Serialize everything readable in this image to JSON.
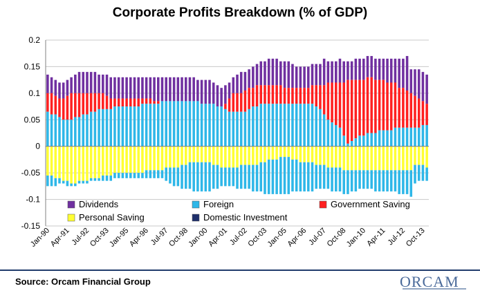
{
  "chart_data": {
    "type": "bar",
    "stacked": true,
    "title": "Corporate Profits Breakdown (% of GDP)",
    "xlabel": "",
    "ylabel": "",
    "ylim": [
      -0.15,
      0.2
    ],
    "yticks": [
      -0.15,
      -0.1,
      -0.05,
      0,
      0.05,
      0.1,
      0.15,
      0.2
    ],
    "ytick_labels": [
      "-0.15",
      "-0.1",
      "-0.05",
      "0",
      "0.05",
      "0.1",
      "0.15",
      "0.2"
    ],
    "x_tick_labels": [
      "Jan-90",
      "Apr-91",
      "Jul-92",
      "Oct-93",
      "Jan-95",
      "Apr-96",
      "Jul-97",
      "Oct-98",
      "Jan-00",
      "Apr-01",
      "Jul-02",
      "Oct-03",
      "Jan-05",
      "Apr-06",
      "Jul-07",
      "Oct-08",
      "Jan-10",
      "Apr-11",
      "Jul-12",
      "Oct-13"
    ],
    "grid": true,
    "legend_position": "bottom",
    "series": [
      {
        "name": "Dividends",
        "color": "#7030a0"
      },
      {
        "name": "Foreign",
        "color": "#2eb7e8"
      },
      {
        "name": "Government Saving",
        "color": "#ff2020"
      },
      {
        "name": "Personal Saving",
        "color": "#ffff33"
      },
      {
        "name": "Domestic Investment",
        "color": "#1f2f6b"
      }
    ],
    "quarterly_values": {
      "x": [
        "1990-Q1",
        "1990-Q2",
        "1990-Q3",
        "1990-Q4",
        "1991-Q1",
        "1991-Q2",
        "1991-Q3",
        "1991-Q4",
        "1992-Q1",
        "1992-Q2",
        "1992-Q3",
        "1992-Q4",
        "1993-Q1",
        "1993-Q2",
        "1993-Q3",
        "1993-Q4",
        "1994-Q1",
        "1994-Q2",
        "1994-Q3",
        "1994-Q4",
        "1995-Q1",
        "1995-Q2",
        "1995-Q3",
        "1995-Q4",
        "1996-Q1",
        "1996-Q2",
        "1996-Q3",
        "1996-Q4",
        "1997-Q1",
        "1997-Q2",
        "1997-Q3",
        "1997-Q4",
        "1998-Q1",
        "1998-Q2",
        "1998-Q3",
        "1998-Q4",
        "1999-Q1",
        "1999-Q2",
        "1999-Q3",
        "1999-Q4",
        "2000-Q1",
        "2000-Q2",
        "2000-Q3",
        "2000-Q4",
        "2001-Q1",
        "2001-Q2",
        "2001-Q3",
        "2001-Q4",
        "2002-Q1",
        "2002-Q2",
        "2002-Q3",
        "2002-Q4",
        "2003-Q1",
        "2003-Q2",
        "2003-Q3",
        "2003-Q4",
        "2004-Q1",
        "2004-Q2",
        "2004-Q3",
        "2004-Q4",
        "2005-Q1",
        "2005-Q2",
        "2005-Q3",
        "2005-Q4",
        "2006-Q1",
        "2006-Q2",
        "2006-Q3",
        "2006-Q4",
        "2007-Q1",
        "2007-Q2",
        "2007-Q3",
        "2007-Q4",
        "2008-Q1",
        "2008-Q2",
        "2008-Q3",
        "2008-Q4",
        "2009-Q1",
        "2009-Q2",
        "2009-Q3",
        "2009-Q4",
        "2010-Q1",
        "2010-Q2",
        "2010-Q3",
        "2010-Q4",
        "2011-Q1",
        "2011-Q2",
        "2011-Q3",
        "2011-Q4",
        "2012-Q1",
        "2012-Q2",
        "2012-Q3",
        "2012-Q4",
        "2013-Q1",
        "2013-Q2",
        "2013-Q3",
        "2013-Q4",
        "2014-Q1"
      ],
      "positive_total": [
        0.135,
        0.13,
        0.125,
        0.12,
        0.12,
        0.125,
        0.13,
        0.135,
        0.14,
        0.14,
        0.14,
        0.14,
        0.14,
        0.135,
        0.135,
        0.135,
        0.13,
        0.13,
        0.13,
        0.13,
        0.13,
        0.13,
        0.13,
        0.13,
        0.13,
        0.13,
        0.13,
        0.13,
        0.13,
        0.13,
        0.13,
        0.13,
        0.13,
        0.13,
        0.13,
        0.13,
        0.13,
        0.13,
        0.125,
        0.125,
        0.125,
        0.125,
        0.12,
        0.115,
        0.11,
        0.115,
        0.12,
        0.13,
        0.135,
        0.14,
        0.14,
        0.145,
        0.15,
        0.155,
        0.16,
        0.16,
        0.165,
        0.165,
        0.165,
        0.16,
        0.16,
        0.16,
        0.155,
        0.15,
        0.15,
        0.15,
        0.15,
        0.155,
        0.155,
        0.155,
        0.165,
        0.16,
        0.16,
        0.16,
        0.165,
        0.16,
        0.16,
        0.16,
        0.165,
        0.165,
        0.165,
        0.17,
        0.17,
        0.165,
        0.165,
        0.165,
        0.165,
        0.165,
        0.165,
        0.165,
        0.165,
        0.17,
        0.145,
        0.145,
        0.145,
        0.14,
        0.135
      ],
      "red_top": [
        0.1,
        0.1,
        0.095,
        0.09,
        0.09,
        0.095,
        0.1,
        0.1,
        0.1,
        0.1,
        0.1,
        0.1,
        0.1,
        0.1,
        0.1,
        0.095,
        0.09,
        0.09,
        0.09,
        0.09,
        0.09,
        0.09,
        0.09,
        0.09,
        0.09,
        0.09,
        0.09,
        0.085,
        0.085,
        0.085,
        0.085,
        0.085,
        0.085,
        0.085,
        0.085,
        0.085,
        0.085,
        0.085,
        0.085,
        0.08,
        0.08,
        0.08,
        0.08,
        0.075,
        0.075,
        0.08,
        0.09,
        0.1,
        0.1,
        0.1,
        0.105,
        0.11,
        0.11,
        0.115,
        0.115,
        0.115,
        0.115,
        0.115,
        0.115,
        0.115,
        0.11,
        0.11,
        0.11,
        0.11,
        0.11,
        0.11,
        0.11,
        0.115,
        0.115,
        0.115,
        0.115,
        0.12,
        0.12,
        0.12,
        0.12,
        0.12,
        0.125,
        0.125,
        0.125,
        0.125,
        0.125,
        0.13,
        0.13,
        0.125,
        0.125,
        0.125,
        0.12,
        0.12,
        0.12,
        0.11,
        0.11,
        0.105,
        0.1,
        0.095,
        0.09,
        0.085,
        0.08
      ],
      "foreign_top": [
        0.065,
        0.06,
        0.06,
        0.055,
        0.05,
        0.05,
        0.05,
        0.055,
        0.055,
        0.06,
        0.06,
        0.065,
        0.065,
        0.07,
        0.07,
        0.07,
        0.07,
        0.075,
        0.075,
        0.075,
        0.075,
        0.075,
        0.075,
        0.075,
        0.08,
        0.08,
        0.08,
        0.08,
        0.08,
        0.085,
        0.085,
        0.085,
        0.085,
        0.085,
        0.085,
        0.085,
        0.085,
        0.085,
        0.085,
        0.08,
        0.08,
        0.08,
        0.08,
        0.075,
        0.075,
        0.07,
        0.065,
        0.065,
        0.065,
        0.065,
        0.065,
        0.07,
        0.075,
        0.075,
        0.08,
        0.08,
        0.08,
        0.08,
        0.08,
        0.08,
        0.08,
        0.08,
        0.08,
        0.08,
        0.08,
        0.08,
        0.08,
        0.08,
        0.075,
        0.07,
        0.06,
        0.05,
        0.045,
        0.04,
        0.035,
        0.02,
        0.005,
        0.01,
        0.015,
        0.02,
        0.02,
        0.025,
        0.025,
        0.025,
        0.03,
        0.03,
        0.03,
        0.03,
        0.035,
        0.035,
        0.035,
        0.035,
        0.035,
        0.035,
        0.035,
        0.04,
        0.04
      ],
      "yellow_bottom": [
        -0.055,
        -0.055,
        -0.06,
        -0.06,
        -0.065,
        -0.065,
        -0.07,
        -0.07,
        -0.065,
        -0.065,
        -0.065,
        -0.06,
        -0.06,
        -0.06,
        -0.055,
        -0.055,
        -0.055,
        -0.05,
        -0.05,
        -0.05,
        -0.05,
        -0.05,
        -0.05,
        -0.05,
        -0.05,
        -0.045,
        -0.045,
        -0.045,
        -0.045,
        -0.045,
        -0.04,
        -0.04,
        -0.04,
        -0.04,
        -0.035,
        -0.035,
        -0.03,
        -0.03,
        -0.03,
        -0.03,
        -0.03,
        -0.03,
        -0.035,
        -0.035,
        -0.04,
        -0.04,
        -0.04,
        -0.04,
        -0.04,
        -0.035,
        -0.035,
        -0.035,
        -0.035,
        -0.035,
        -0.03,
        -0.03,
        -0.025,
        -0.025,
        -0.025,
        -0.02,
        -0.02,
        -0.02,
        -0.025,
        -0.025,
        -0.03,
        -0.03,
        -0.03,
        -0.03,
        -0.035,
        -0.035,
        -0.035,
        -0.04,
        -0.04,
        -0.04,
        -0.04,
        -0.045,
        -0.045,
        -0.045,
        -0.045,
        -0.045,
        -0.045,
        -0.045,
        -0.045,
        -0.045,
        -0.045,
        -0.045,
        -0.045,
        -0.045,
        -0.045,
        -0.045,
        -0.045,
        -0.045,
        -0.045,
        -0.035,
        -0.035,
        -0.035,
        -0.04
      ],
      "total_bottom": [
        -0.075,
        -0.075,
        -0.075,
        -0.07,
        -0.07,
        -0.075,
        -0.075,
        -0.075,
        -0.07,
        -0.07,
        -0.07,
        -0.065,
        -0.065,
        -0.065,
        -0.065,
        -0.065,
        -0.065,
        -0.06,
        -0.06,
        -0.06,
        -0.06,
        -0.06,
        -0.06,
        -0.06,
        -0.06,
        -0.06,
        -0.06,
        -0.06,
        -0.06,
        -0.06,
        -0.065,
        -0.07,
        -0.075,
        -0.075,
        -0.08,
        -0.08,
        -0.08,
        -0.085,
        -0.085,
        -0.085,
        -0.085,
        -0.085,
        -0.08,
        -0.08,
        -0.075,
        -0.075,
        -0.075,
        -0.075,
        -0.08,
        -0.08,
        -0.08,
        -0.08,
        -0.085,
        -0.085,
        -0.085,
        -0.09,
        -0.09,
        -0.09,
        -0.09,
        -0.09,
        -0.09,
        -0.09,
        -0.085,
        -0.085,
        -0.085,
        -0.085,
        -0.085,
        -0.085,
        -0.08,
        -0.08,
        -0.08,
        -0.08,
        -0.085,
        -0.085,
        -0.085,
        -0.09,
        -0.09,
        -0.085,
        -0.085,
        -0.08,
        -0.08,
        -0.08,
        -0.08,
        -0.085,
        -0.085,
        -0.085,
        -0.085,
        -0.085,
        -0.085,
        -0.09,
        -0.09,
        -0.09,
        -0.095,
        -0.07,
        -0.065,
        -0.065,
        -0.065
      ]
    }
  },
  "footer": {
    "source": "Source: Orcam Financial Group",
    "logo_text": "ORCAM"
  }
}
